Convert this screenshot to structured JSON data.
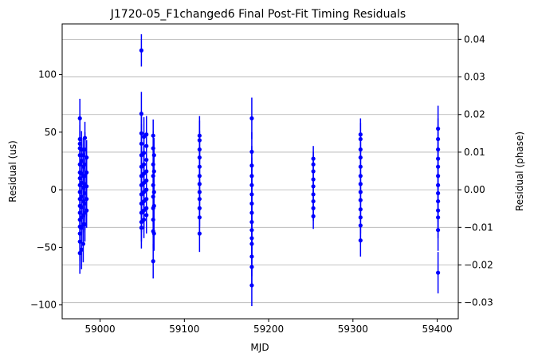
{
  "chart_data": {
    "type": "scatter",
    "title": "J1720-05_F1changed6 Final Post-Fit Timing Residuals",
    "xlabel": "MJD",
    "ylabel": "Residual (us)",
    "ylabel_right": "Residual (phase)",
    "xlim": [
      58955,
      59425
    ],
    "ylim": [
      -112,
      144
    ],
    "ylim_right": [
      -0.0343,
      0.0441
    ],
    "x_ticks": [
      59000,
      59100,
      59200,
      59300,
      59400
    ],
    "y_ticks": [
      -100,
      -50,
      0,
      50,
      100
    ],
    "y_ticks_right": [
      -0.03,
      -0.02,
      -0.01,
      0.0,
      0.01,
      0.02,
      0.03,
      0.04
    ],
    "grid": "horizontal lines at right-axis ticks",
    "color": "#0000ff",
    "series": [
      {
        "points": [
          [
            58976,
            62,
            17
          ],
          [
            58976,
            44,
            16
          ],
          [
            58976,
            40,
            16
          ],
          [
            58976,
            36,
            15
          ],
          [
            58976,
            30,
            16
          ],
          [
            58976,
            22,
            16
          ],
          [
            58976,
            15,
            15
          ],
          [
            58976,
            10,
            15
          ],
          [
            58976,
            4,
            15
          ],
          [
            58976,
            -2,
            15
          ],
          [
            58976,
            -8,
            16
          ],
          [
            58976,
            -14,
            15
          ],
          [
            58976,
            -20,
            16
          ],
          [
            58976,
            -26,
            16
          ],
          [
            58976,
            -32,
            16
          ],
          [
            58976,
            -38,
            16
          ],
          [
            58976,
            -45,
            17
          ],
          [
            58976,
            -55,
            18
          ],
          [
            58978,
            35,
            16
          ],
          [
            58978,
            25,
            15
          ],
          [
            58978,
            14,
            15
          ],
          [
            58978,
            6,
            15
          ],
          [
            58978,
            -6,
            15
          ],
          [
            58978,
            -15,
            16
          ],
          [
            58978,
            -24,
            15
          ],
          [
            58978,
            -33,
            16
          ],
          [
            58978,
            -52,
            17
          ],
          [
            58980,
            30,
            15
          ],
          [
            58980,
            20,
            15
          ],
          [
            58980,
            12,
            15
          ],
          [
            58980,
            2,
            15
          ],
          [
            58980,
            -10,
            15
          ],
          [
            58980,
            -22,
            15
          ],
          [
            58980,
            -30,
            16
          ],
          [
            58980,
            -47,
            16
          ],
          [
            58982,
            45,
            14
          ],
          [
            58982,
            35,
            15
          ],
          [
            58982,
            22,
            15
          ],
          [
            58982,
            12,
            15
          ],
          [
            58982,
            5,
            15
          ],
          [
            58982,
            -3,
            15
          ],
          [
            58982,
            -12,
            15
          ],
          [
            58982,
            -20,
            15
          ],
          [
            58982,
            -30,
            15
          ],
          [
            58984,
            28,
            15
          ],
          [
            58984,
            15,
            15
          ],
          [
            58984,
            3,
            15
          ],
          [
            58984,
            -8,
            15
          ],
          [
            58984,
            -18,
            15
          ],
          [
            59049,
            121,
            14
          ],
          [
            59049,
            66,
            19
          ],
          [
            59049,
            49,
            18
          ],
          [
            59049,
            40,
            17
          ],
          [
            59049,
            30,
            17
          ],
          [
            59049,
            20,
            17
          ],
          [
            59049,
            12,
            16
          ],
          [
            59049,
            4,
            16
          ],
          [
            59049,
            -4,
            16
          ],
          [
            59049,
            -12,
            17
          ],
          [
            59049,
            -20,
            17
          ],
          [
            59049,
            -28,
            17
          ],
          [
            59049,
            -33,
            18
          ],
          [
            59052,
            46,
            17
          ],
          [
            59052,
            32,
            17
          ],
          [
            59052,
            22,
            16
          ],
          [
            59052,
            14,
            16
          ],
          [
            59052,
            6,
            16
          ],
          [
            59052,
            -2,
            16
          ],
          [
            59052,
            -10,
            16
          ],
          [
            59052,
            -18,
            16
          ],
          [
            59052,
            -26,
            16
          ],
          [
            59055,
            48,
            16
          ],
          [
            59055,
            38,
            16
          ],
          [
            59055,
            26,
            16
          ],
          [
            59055,
            16,
            16
          ],
          [
            59055,
            8,
            16
          ],
          [
            59055,
            0,
            16
          ],
          [
            59055,
            -8,
            16
          ],
          [
            59055,
            -16,
            16
          ],
          [
            59055,
            -22,
            16
          ],
          [
            59063,
            47,
            14
          ],
          [
            59063,
            36,
            15
          ],
          [
            59063,
            22,
            15
          ],
          [
            59063,
            12,
            15
          ],
          [
            59063,
            4,
            15
          ],
          [
            59063,
            -6,
            15
          ],
          [
            59063,
            -16,
            15
          ],
          [
            59063,
            -26,
            15
          ],
          [
            59063,
            -36,
            15
          ],
          [
            59063,
            -62,
            15
          ],
          [
            59064,
            30,
            15
          ],
          [
            59064,
            16,
            15
          ],
          [
            59064,
            -2,
            15
          ],
          [
            59064,
            -14,
            15
          ],
          [
            59064,
            -38,
            15
          ],
          [
            59118,
            47,
            17
          ],
          [
            59118,
            43,
            17
          ],
          [
            59118,
            35,
            16
          ],
          [
            59118,
            28,
            16
          ],
          [
            59118,
            20,
            16
          ],
          [
            59118,
            12,
            16
          ],
          [
            59118,
            5,
            16
          ],
          [
            59118,
            -2,
            16
          ],
          [
            59118,
            -8,
            16
          ],
          [
            59118,
            -16,
            16
          ],
          [
            59118,
            -24,
            16
          ],
          [
            59118,
            -38,
            16
          ],
          [
            59180,
            62,
            18
          ],
          [
            59180,
            33,
            17
          ],
          [
            59180,
            21,
            17
          ],
          [
            59180,
            12,
            16
          ],
          [
            59180,
            4,
            16
          ],
          [
            59180,
            -4,
            16
          ],
          [
            59180,
            -12,
            16
          ],
          [
            59180,
            -20,
            16
          ],
          [
            59180,
            -28,
            17
          ],
          [
            59180,
            -35,
            17
          ],
          [
            59180,
            -42,
            17
          ],
          [
            59180,
            -47,
            17
          ],
          [
            59180,
            -58,
            17
          ],
          [
            59180,
            -67,
            17
          ],
          [
            59180,
            -83,
            18
          ],
          [
            59253,
            27,
            11
          ],
          [
            59253,
            22,
            11
          ],
          [
            59253,
            16,
            11
          ],
          [
            59253,
            9,
            11
          ],
          [
            59253,
            3,
            11
          ],
          [
            59253,
            -4,
            11
          ],
          [
            59253,
            -10,
            11
          ],
          [
            59253,
            -16,
            11
          ],
          [
            59253,
            -23,
            11
          ],
          [
            59309,
            48,
            14
          ],
          [
            59309,
            44,
            14
          ],
          [
            59309,
            35,
            14
          ],
          [
            59309,
            28,
            14
          ],
          [
            59309,
            20,
            14
          ],
          [
            59309,
            12,
            14
          ],
          [
            59309,
            5,
            14
          ],
          [
            59309,
            -2,
            14
          ],
          [
            59309,
            -9,
            14
          ],
          [
            59309,
            -17,
            14
          ],
          [
            59309,
            -24,
            14
          ],
          [
            59309,
            -31,
            14
          ],
          [
            59309,
            -44,
            14
          ],
          [
            59401,
            53,
            20
          ],
          [
            59401,
            44,
            18
          ],
          [
            59401,
            35,
            18
          ],
          [
            59401,
            27,
            18
          ],
          [
            59401,
            20,
            18
          ],
          [
            59401,
            12,
            18
          ],
          [
            59401,
            4,
            18
          ],
          [
            59401,
            -3,
            18
          ],
          [
            59401,
            -10,
            18
          ],
          [
            59401,
            -18,
            18
          ],
          [
            59401,
            -24,
            18
          ],
          [
            59401,
            -35,
            18
          ],
          [
            59401,
            -72,
            18
          ]
        ]
      }
    ]
  }
}
